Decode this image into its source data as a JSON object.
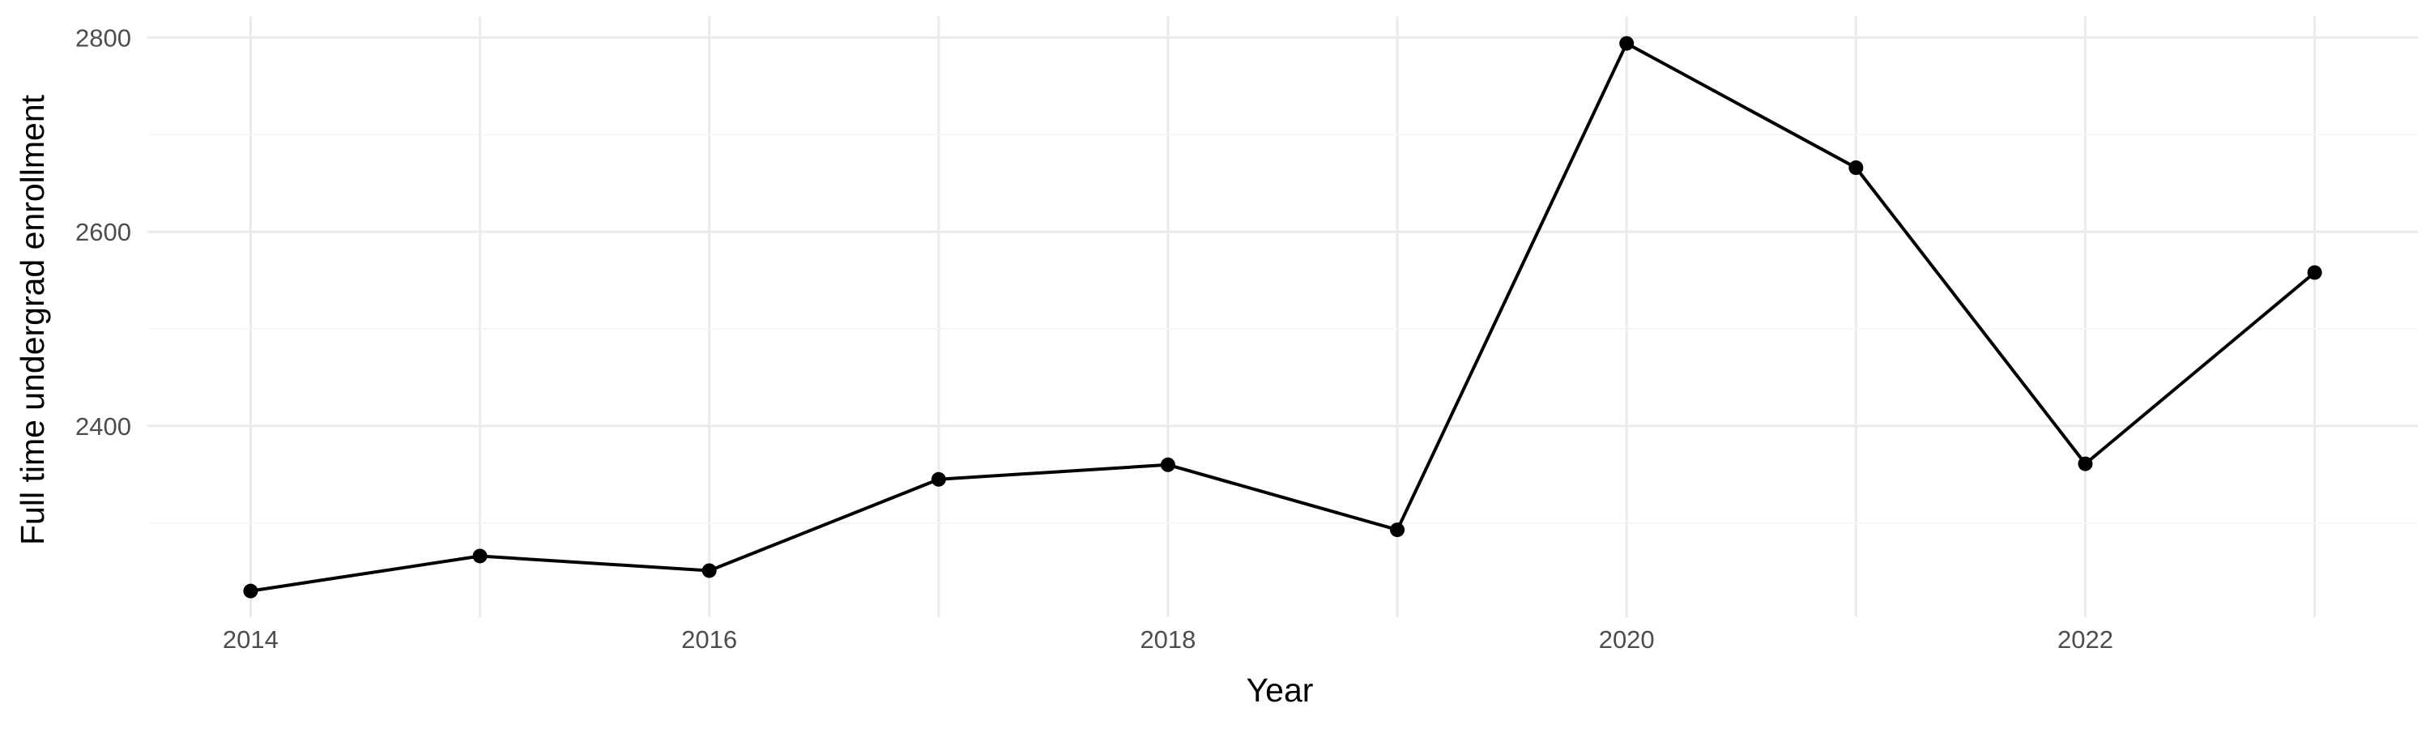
{
  "chart_data": {
    "type": "line",
    "title": "",
    "xlabel": "Year",
    "ylabel": "Full time undergrad enrollment",
    "x": [
      2014,
      2015,
      2016,
      2017,
      2018,
      2019,
      2020,
      2021,
      2022,
      2023
    ],
    "series": [
      {
        "values": [
          2230,
          2266,
          2251,
          2345,
          2360,
          2293,
          2794,
          2666,
          2361,
          2558
        ],
        "color": "#000000"
      }
    ],
    "xlim": [
      2013.55,
      2023.45
    ],
    "ylim": [
      2203,
      2822
    ],
    "x_ticks": [
      "2014",
      "2016",
      "2018",
      "2020",
      "2022"
    ],
    "y_ticks": [
      "2400",
      "2600",
      "2800"
    ],
    "grid": true,
    "legend": "none"
  }
}
